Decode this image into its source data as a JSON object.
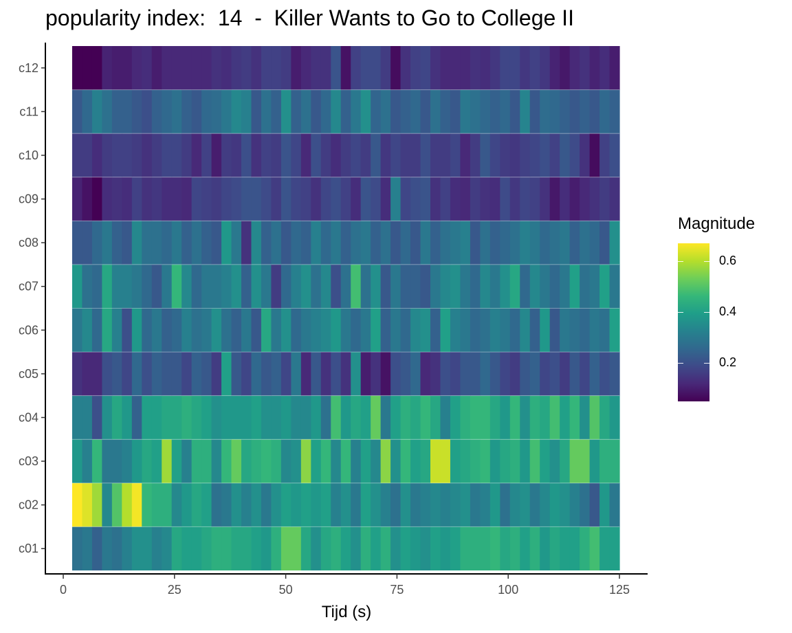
{
  "chart_data": {
    "type": "heatmap",
    "title": "popularity index:  14  -  Killer Wants to Go to College II",
    "xlabel": "Tijd (s)",
    "ylabel": "",
    "x_ticks": [
      0,
      25,
      50,
      75,
      100,
      125
    ],
    "xlim": [
      -2.5,
      131
    ],
    "x_range_data": [
      2,
      125
    ],
    "rows": [
      "c01",
      "c02",
      "c03",
      "c04",
      "c05",
      "c06",
      "c07",
      "c08",
      "c09",
      "c10",
      "c11",
      "c12"
    ],
    "n_frames": 55,
    "color_scale": {
      "name": "viridis",
      "legend_title": "Magnitude",
      "legend_ticks": [
        0.2,
        0.4,
        0.6
      ],
      "min": 0.05,
      "max": 0.67,
      "colors": [
        "#440154",
        "#482878",
        "#3e4a89",
        "#31688e",
        "#26828e",
        "#1f9e89",
        "#35b779",
        "#6ece58",
        "#b5de2b",
        "#fde725"
      ]
    },
    "values": {
      "c12": [
        0.05,
        0.05,
        0.05,
        0.11,
        0.1,
        0.1,
        0.12,
        0.13,
        0.1,
        0.12,
        0.12,
        0.12,
        0.12,
        0.12,
        0.14,
        0.13,
        0.15,
        0.16,
        0.14,
        0.17,
        0.17,
        0.16,
        0.1,
        0.12,
        0.14,
        0.14,
        0.21,
        0.08,
        0.17,
        0.19,
        0.19,
        0.16,
        0.07,
        0.14,
        0.17,
        0.18,
        0.14,
        0.12,
        0.12,
        0.12,
        0.14,
        0.13,
        0.15,
        0.18,
        0.18,
        0.15,
        0.17,
        0.15,
        0.11,
        0.09,
        0.12,
        0.14,
        0.11,
        0.13,
        0.1
      ],
      "c11": [
        0.22,
        0.26,
        0.32,
        0.28,
        0.24,
        0.24,
        0.22,
        0.2,
        0.24,
        0.26,
        0.28,
        0.24,
        0.22,
        0.26,
        0.27,
        0.3,
        0.34,
        0.32,
        0.22,
        0.28,
        0.24,
        0.36,
        0.24,
        0.28,
        0.22,
        0.26,
        0.34,
        0.24,
        0.3,
        0.36,
        0.25,
        0.28,
        0.22,
        0.24,
        0.26,
        0.22,
        0.28,
        0.24,
        0.22,
        0.3,
        0.28,
        0.26,
        0.24,
        0.26,
        0.22,
        0.33,
        0.22,
        0.27,
        0.26,
        0.24,
        0.22,
        0.24,
        0.22,
        0.26,
        0.24
      ],
      "c10": [
        0.16,
        0.16,
        0.13,
        0.16,
        0.17,
        0.17,
        0.16,
        0.14,
        0.16,
        0.18,
        0.18,
        0.16,
        0.12,
        0.17,
        0.1,
        0.16,
        0.15,
        0.2,
        0.14,
        0.17,
        0.16,
        0.21,
        0.18,
        0.12,
        0.2,
        0.16,
        0.13,
        0.16,
        0.18,
        0.16,
        0.22,
        0.15,
        0.18,
        0.16,
        0.16,
        0.2,
        0.16,
        0.16,
        0.18,
        0.12,
        0.16,
        0.22,
        0.18,
        0.16,
        0.15,
        0.17,
        0.18,
        0.2,
        0.17,
        0.22,
        0.19,
        0.14,
        0.07,
        0.17,
        0.2
      ],
      "c09": [
        0.11,
        0.08,
        0.05,
        0.13,
        0.14,
        0.13,
        0.17,
        0.14,
        0.15,
        0.13,
        0.13,
        0.12,
        0.18,
        0.17,
        0.16,
        0.18,
        0.19,
        0.21,
        0.21,
        0.19,
        0.16,
        0.21,
        0.18,
        0.17,
        0.14,
        0.18,
        0.2,
        0.17,
        0.13,
        0.21,
        0.19,
        0.13,
        0.32,
        0.18,
        0.2,
        0.21,
        0.14,
        0.17,
        0.13,
        0.12,
        0.16,
        0.14,
        0.13,
        0.19,
        0.15,
        0.18,
        0.17,
        0.14,
        0.09,
        0.13,
        0.1,
        0.12,
        0.14,
        0.16,
        0.14
      ],
      "c08": [
        0.22,
        0.22,
        0.26,
        0.3,
        0.24,
        0.22,
        0.34,
        0.28,
        0.28,
        0.26,
        0.3,
        0.24,
        0.28,
        0.24,
        0.22,
        0.38,
        0.3,
        0.14,
        0.34,
        0.24,
        0.28,
        0.22,
        0.26,
        0.24,
        0.32,
        0.26,
        0.3,
        0.24,
        0.28,
        0.3,
        0.24,
        0.28,
        0.22,
        0.26,
        0.22,
        0.3,
        0.24,
        0.28,
        0.3,
        0.32,
        0.22,
        0.28,
        0.24,
        0.26,
        0.28,
        0.32,
        0.3,
        0.26,
        0.28,
        0.3,
        0.24,
        0.28,
        0.26,
        0.22,
        0.36
      ],
      "c07": [
        0.38,
        0.28,
        0.26,
        0.42,
        0.32,
        0.32,
        0.3,
        0.26,
        0.22,
        0.3,
        0.46,
        0.34,
        0.26,
        0.3,
        0.3,
        0.32,
        0.36,
        0.24,
        0.36,
        0.3,
        0.16,
        0.26,
        0.32,
        0.36,
        0.28,
        0.34,
        0.2,
        0.28,
        0.48,
        0.28,
        0.36,
        0.22,
        0.3,
        0.24,
        0.24,
        0.22,
        0.3,
        0.34,
        0.36,
        0.3,
        0.26,
        0.34,
        0.3,
        0.36,
        0.42,
        0.26,
        0.34,
        0.3,
        0.26,
        0.3,
        0.4,
        0.28,
        0.3,
        0.4,
        0.3
      ],
      "c06": [
        0.3,
        0.34,
        0.26,
        0.42,
        0.32,
        0.2,
        0.38,
        0.26,
        0.3,
        0.24,
        0.26,
        0.32,
        0.28,
        0.3,
        0.36,
        0.28,
        0.24,
        0.3,
        0.22,
        0.42,
        0.3,
        0.36,
        0.26,
        0.3,
        0.32,
        0.34,
        0.38,
        0.3,
        0.26,
        0.3,
        0.4,
        0.24,
        0.3,
        0.26,
        0.34,
        0.36,
        0.24,
        0.4,
        0.32,
        0.3,
        0.26,
        0.28,
        0.32,
        0.3,
        0.26,
        0.34,
        0.24,
        0.38,
        0.22,
        0.3,
        0.28,
        0.26,
        0.3,
        0.28,
        0.4
      ],
      "c05": [
        0.14,
        0.12,
        0.12,
        0.2,
        0.22,
        0.18,
        0.26,
        0.2,
        0.24,
        0.22,
        0.22,
        0.18,
        0.24,
        0.22,
        0.16,
        0.4,
        0.22,
        0.18,
        0.26,
        0.22,
        0.24,
        0.18,
        0.3,
        0.12,
        0.22,
        0.14,
        0.2,
        0.14,
        0.36,
        0.1,
        0.14,
        0.08,
        0.2,
        0.22,
        0.26,
        0.12,
        0.14,
        0.2,
        0.18,
        0.22,
        0.22,
        0.26,
        0.22,
        0.18,
        0.16,
        0.22,
        0.24,
        0.18,
        0.2,
        0.16,
        0.22,
        0.18,
        0.24,
        0.2,
        0.22
      ],
      "c04": [
        0.32,
        0.32,
        0.2,
        0.36,
        0.42,
        0.38,
        0.24,
        0.4,
        0.4,
        0.42,
        0.42,
        0.44,
        0.42,
        0.4,
        0.36,
        0.38,
        0.38,
        0.38,
        0.4,
        0.36,
        0.36,
        0.38,
        0.34,
        0.34,
        0.38,
        0.28,
        0.48,
        0.38,
        0.42,
        0.4,
        0.52,
        0.3,
        0.4,
        0.44,
        0.42,
        0.46,
        0.42,
        0.32,
        0.4,
        0.44,
        0.46,
        0.46,
        0.42,
        0.38,
        0.46,
        0.36,
        0.44,
        0.42,
        0.48,
        0.4,
        0.46,
        0.36,
        0.5,
        0.42,
        0.38
      ],
      "c03": [
        0.38,
        0.32,
        0.46,
        0.3,
        0.3,
        0.32,
        0.38,
        0.42,
        0.4,
        0.58,
        0.4,
        0.32,
        0.44,
        0.44,
        0.34,
        0.46,
        0.52,
        0.42,
        0.44,
        0.46,
        0.44,
        0.34,
        0.36,
        0.56,
        0.4,
        0.46,
        0.34,
        0.46,
        0.32,
        0.4,
        0.34,
        0.56,
        0.36,
        0.46,
        0.4,
        0.42,
        0.62,
        0.62,
        0.4,
        0.42,
        0.44,
        0.46,
        0.38,
        0.42,
        0.44,
        0.38,
        0.48,
        0.4,
        0.36,
        0.42,
        0.52,
        0.52,
        0.38,
        0.44,
        0.44
      ],
      "c02": [
        0.67,
        0.64,
        0.58,
        0.34,
        0.5,
        0.6,
        0.66,
        0.46,
        0.44,
        0.44,
        0.34,
        0.38,
        0.42,
        0.4,
        0.28,
        0.3,
        0.36,
        0.32,
        0.36,
        0.3,
        0.36,
        0.4,
        0.38,
        0.4,
        0.38,
        0.4,
        0.32,
        0.36,
        0.3,
        0.4,
        0.36,
        0.32,
        0.28,
        0.36,
        0.3,
        0.32,
        0.34,
        0.32,
        0.34,
        0.36,
        0.3,
        0.32,
        0.38,
        0.28,
        0.34,
        0.36,
        0.3,
        0.34,
        0.38,
        0.36,
        0.32,
        0.28,
        0.22,
        0.38,
        0.3
      ],
      "c01": [
        0.28,
        0.3,
        0.24,
        0.3,
        0.28,
        0.32,
        0.36,
        0.36,
        0.32,
        0.34,
        0.42,
        0.4,
        0.4,
        0.42,
        0.44,
        0.44,
        0.42,
        0.42,
        0.4,
        0.38,
        0.44,
        0.52,
        0.52,
        0.42,
        0.36,
        0.42,
        0.44,
        0.4,
        0.36,
        0.44,
        0.4,
        0.44,
        0.36,
        0.4,
        0.38,
        0.36,
        0.4,
        0.38,
        0.4,
        0.44,
        0.44,
        0.44,
        0.46,
        0.42,
        0.44,
        0.4,
        0.44,
        0.38,
        0.42,
        0.4,
        0.4,
        0.44,
        0.48,
        0.4,
        0.4
      ]
    }
  }
}
